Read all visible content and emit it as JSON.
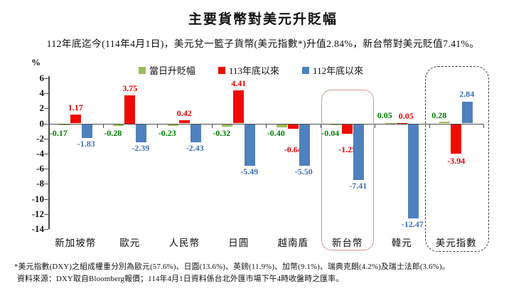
{
  "title": "主要貨幣對美元升貶幅",
  "subtitle": "112年底迄今(114年4月1日)，美元兌一籃子貨幣(美元指數*)升值2.84%，新台幣對美元貶值7.41%。",
  "unit_label": "%",
  "chart_data": {
    "type": "bar",
    "title": "主要貨幣對美元升貶幅",
    "ylabel": "%",
    "ylim": [
      -14,
      6
    ],
    "ytick_step": 2,
    "grid": false,
    "legend_position": "top",
    "categories": [
      "新加坡幣",
      "歐元",
      "人民幣",
      "日圓",
      "越南盾",
      "新台幣",
      "韓元",
      "美元指數"
    ],
    "series": [
      {
        "name": "當日升貶幅",
        "color": "#9bbb59",
        "label_color": "#008000",
        "values": [
          -0.17,
          -0.28,
          -0.23,
          -0.32,
          -0.4,
          -0.04,
          0.05,
          0.28
        ],
        "labels": [
          "-0.17",
          "-0.28",
          "-0.23",
          "-0.32",
          "-0.40",
          "-0.04",
          "0.05",
          "0.28"
        ]
      },
      {
        "name": "113年底以來",
        "color": "#ee0c00",
        "label_color": "#e00000",
        "values": [
          1.17,
          3.75,
          0.42,
          4.41,
          -0.64,
          -1.25,
          0.05,
          -3.94
        ],
        "labels": [
          "1.17",
          "3.75",
          "0.42",
          "4.41",
          "-0.64",
          "-1.25",
          "0.05",
          "-3.94"
        ]
      },
      {
        "name": "112年底以來",
        "color": "#4f81bd",
        "label_color": "#3f6fb5",
        "values": [
          -1.83,
          -2.39,
          -2.43,
          -5.49,
          -5.5,
          -7.41,
          -12.47,
          2.84
        ],
        "labels": [
          "-1.83",
          "-2.39",
          "-2.43",
          "-5.49",
          "-5.50",
          "-7.41",
          "-12.47",
          "2.84"
        ]
      }
    ],
    "highlights": [
      {
        "category": "新台幣",
        "style": "solid"
      },
      {
        "category": "美元指數",
        "style": "dashed"
      }
    ]
  },
  "footnotes": [
    "*美元指數(DXY)之組成權重分別為歐元(57.6%)、日圓(13.6%)、英鎊(11.9%)、加幣(9.1%)、瑞典克朗(4.2%)及瑞士法郎(3.6%)。",
    "資料來源：DXY取自Bloomberg報價；114年4月1日資料係台北外匯市場下午4時收盤時之匯率。"
  ]
}
